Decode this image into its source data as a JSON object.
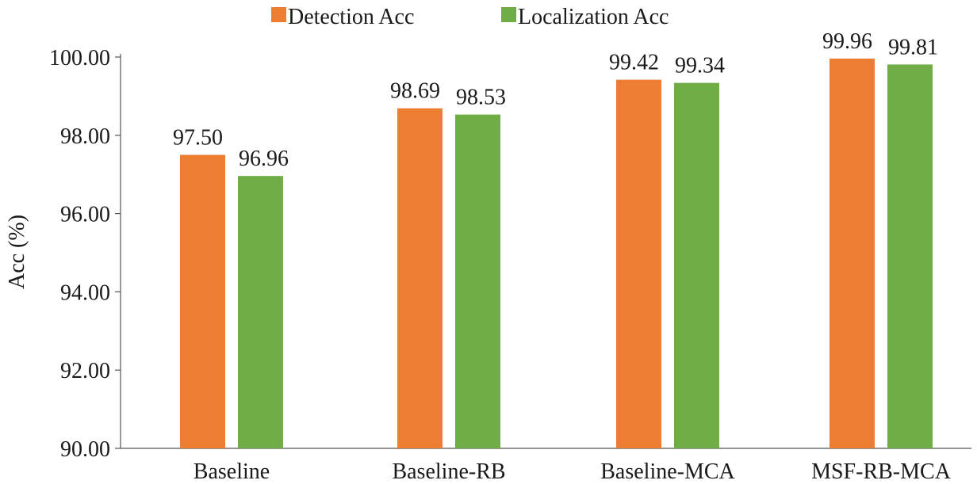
{
  "chart_data": {
    "type": "bar",
    "categories": [
      "Baseline",
      "Baseline-RB",
      "Baseline-MCA",
      "MSF-RB-MCA"
    ],
    "series": [
      {
        "name": "Detection Acc",
        "color": "#ed7d31",
        "values": [
          97.5,
          98.69,
          99.42,
          99.96
        ],
        "labels": [
          "97.50",
          "98.69",
          "99.42",
          "99.96"
        ]
      },
      {
        "name": "Localization Acc",
        "color": "#70ad47",
        "values": [
          96.96,
          98.53,
          99.34,
          99.81
        ],
        "labels": [
          "96.96",
          "98.53",
          "99.34",
          "99.81"
        ]
      }
    ],
    "title": "",
    "xlabel": "",
    "ylabel": "Acc (%)",
    "ylim": [
      90,
      100
    ],
    "yticks": [
      "90.00",
      "92.00",
      "94.00",
      "96.00",
      "98.00",
      "100.00"
    ],
    "ytick_values": [
      90,
      92,
      94,
      96,
      98,
      100
    ],
    "grid": false,
    "legend_position": "top-center"
  }
}
